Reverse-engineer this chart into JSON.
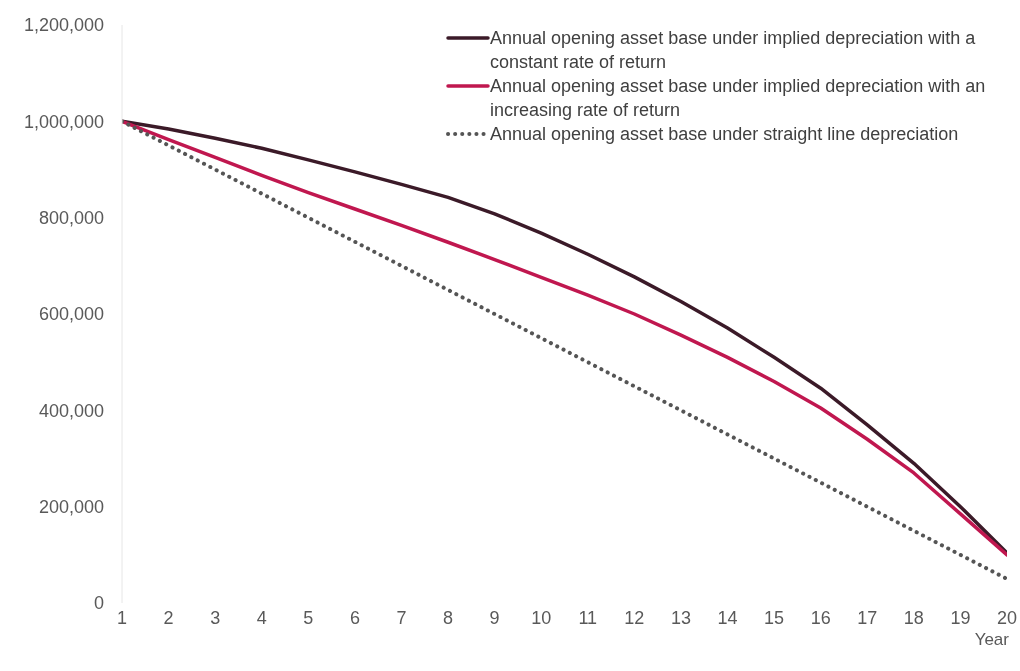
{
  "chart_data": {
    "type": "line",
    "xlabel": "Year",
    "x": [
      1,
      2,
      3,
      4,
      5,
      6,
      7,
      8,
      9,
      10,
      11,
      12,
      13,
      14,
      15,
      16,
      17,
      18,
      19,
      20
    ],
    "series": [
      {
        "name": "Annual opening asset base under implied depreciation with a constant rate of return",
        "color": "#3b1a28",
        "line_style": "solid",
        "values": [
          1000000,
          984000,
          965000,
          944000,
          920000,
          895000,
          869000,
          842000,
          808000,
          768000,
          724000,
          677000,
          626000,
          571000,
          510000,
          446000,
          370000,
          290000,
          200000,
          104000
        ]
      },
      {
        "name": "Annual opening asset base under implied depreciation with an increasing rate of return",
        "color": "#c0174f",
        "line_style": "solid",
        "values": [
          1000000,
          962000,
          925000,
          888000,
          852000,
          818000,
          784000,
          749000,
          713000,
          676000,
          639000,
          600000,
          556000,
          510000,
          460000,
          405000,
          340000,
          270000,
          185000,
          100000
        ]
      },
      {
        "name": "Annual opening asset base under straight line depreciation",
        "color": "#555555",
        "line_style": "dotted",
        "values": [
          1000000,
          950000,
          900000,
          850000,
          800000,
          750000,
          700000,
          650000,
          600000,
          550000,
          500000,
          450000,
          400000,
          350000,
          300000,
          250000,
          200000,
          150000,
          100000,
          50000
        ]
      }
    ],
    "xlim": [
      1,
      20
    ],
    "xticks": [
      1,
      2,
      3,
      4,
      5,
      6,
      7,
      8,
      9,
      10,
      11,
      12,
      13,
      14,
      15,
      16,
      17,
      18,
      19,
      20
    ],
    "ylim": [
      0,
      1200000
    ],
    "yticks": [
      0,
      {
        "value": 200000,
        "label": "200,000"
      },
      {
        "value": 400000,
        "label": "400,000"
      },
      {
        "value": 600000,
        "label": "600,000"
      },
      {
        "value": 800000,
        "label": "800,000"
      },
      {
        "value": 1000000,
        "label": "1,000,000"
      },
      {
        "value": 1200000,
        "label": "1,200,000"
      }
    ],
    "grid": false,
    "legend": "top right",
    "marker": "none"
  }
}
